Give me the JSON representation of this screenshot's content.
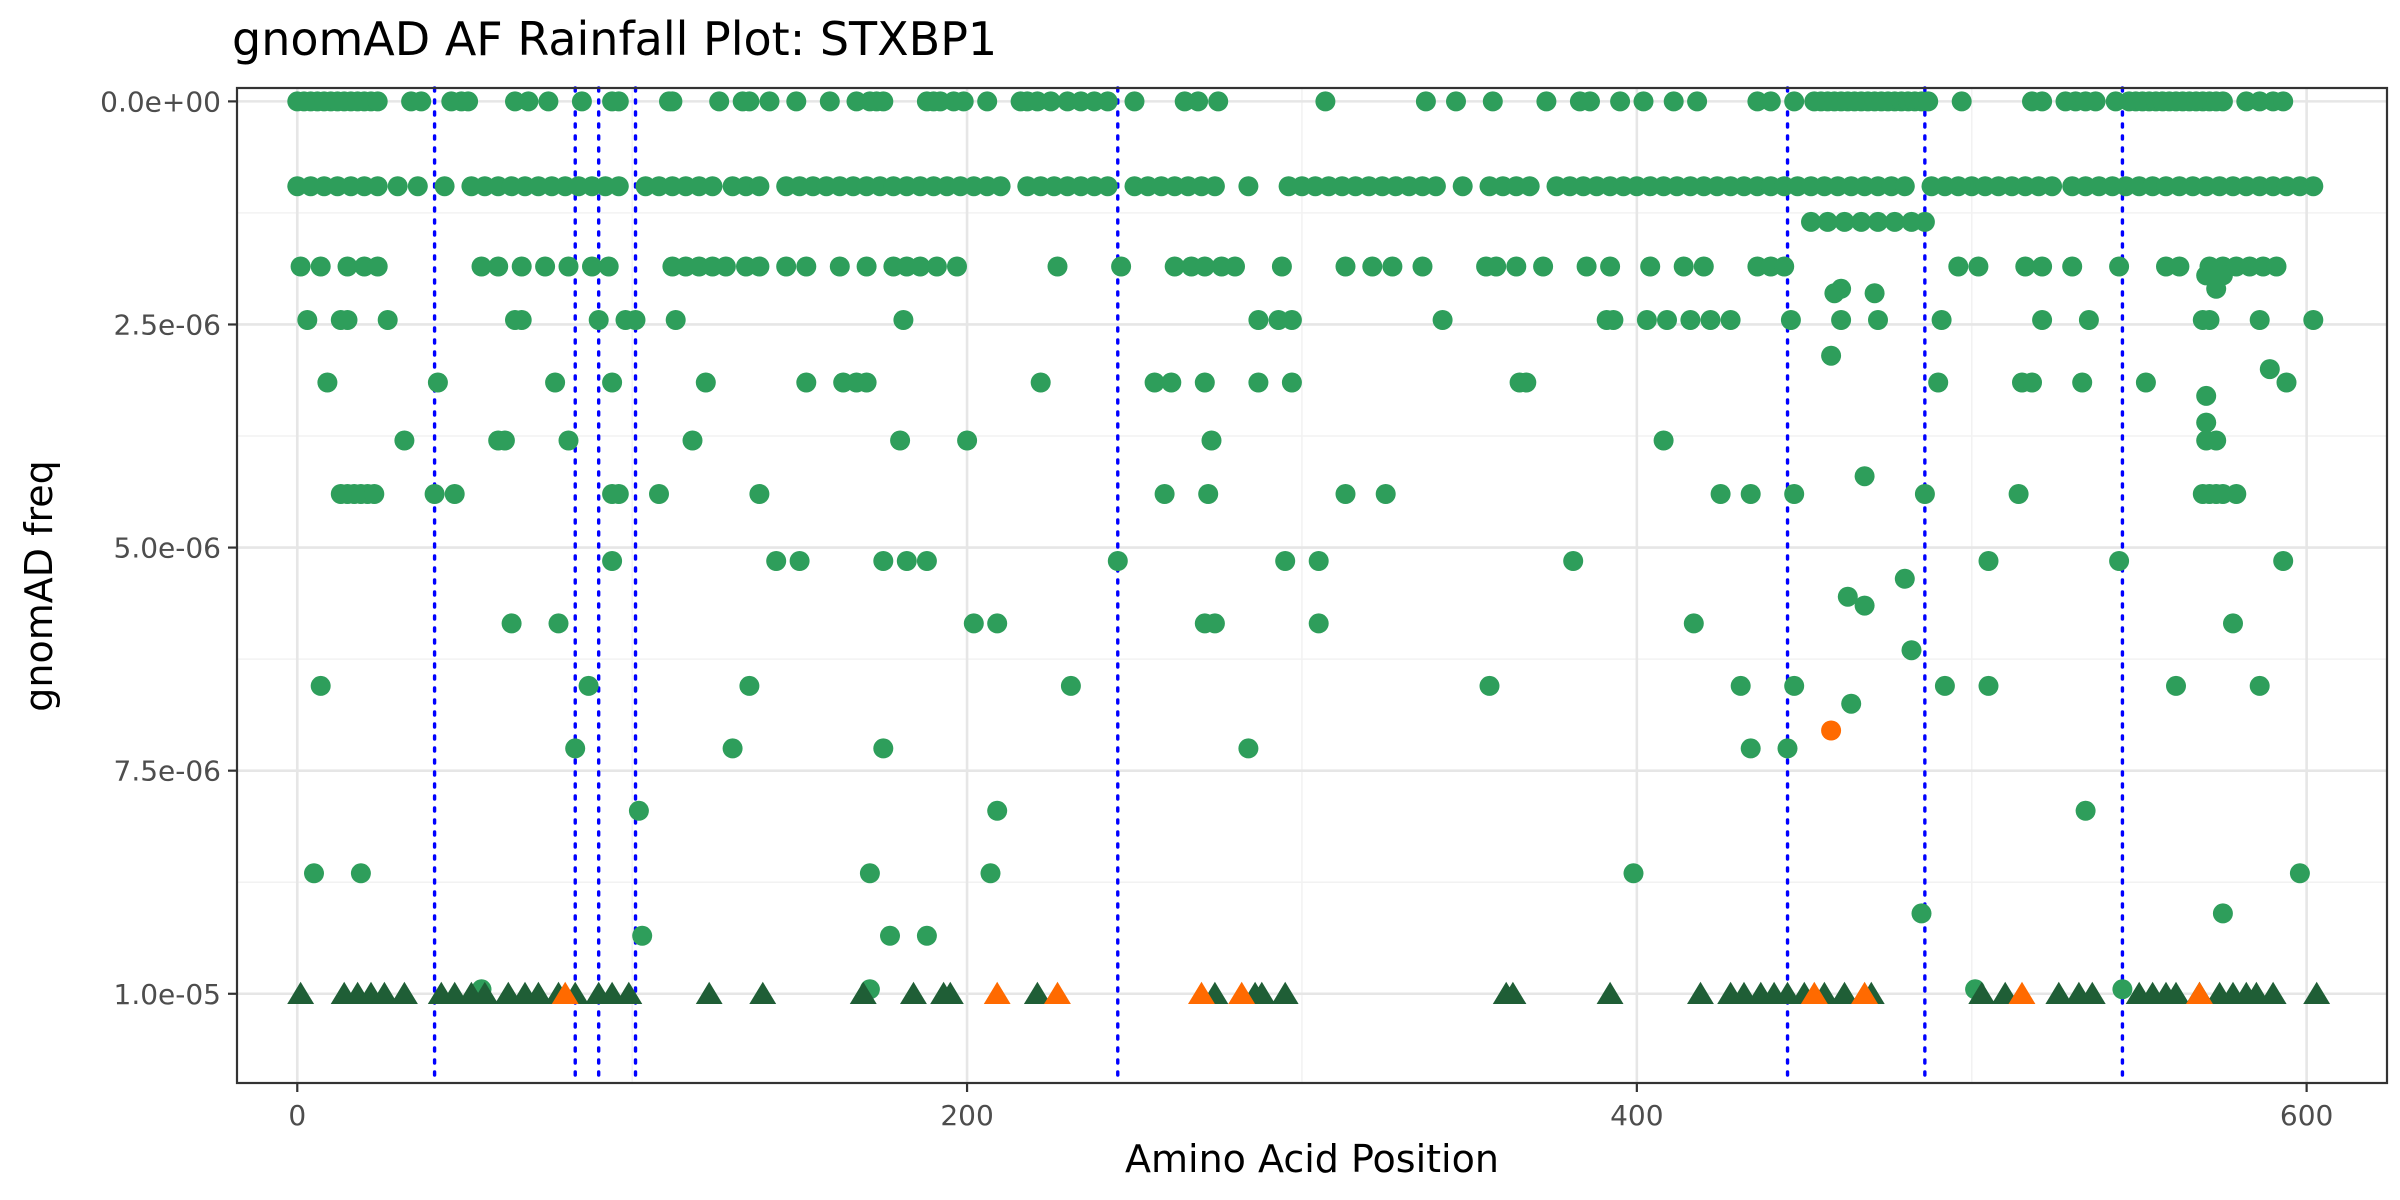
{
  "chart_data": {
    "type": "scatter",
    "title": "gnomAD AF Rainfall Plot: STXBP1",
    "xlabel": "Amino Acid Position",
    "ylabel": "gnomAD freq",
    "xlim": [
      -18,
      624
    ],
    "ylim": [
      1.1e-05,
      -1.5e-07
    ],
    "y_reversed": true,
    "x_ticks": [
      0,
      200,
      400,
      600
    ],
    "x_tick_labels": [
      "0",
      "200",
      "400",
      "600"
    ],
    "y_ticks": [
      0,
      2.5e-06,
      5e-06,
      7.5e-06,
      1e-05
    ],
    "y_tick_labels": [
      "0.0e+00",
      "2.5e-06",
      "5.0e-06",
      "7.5e-06",
      "1.0e-05"
    ],
    "grid": true,
    "legend": "none",
    "colors": {
      "green": "#2e9e5b",
      "dark_green": "#1f5e36",
      "orange": "#ff6a00",
      "vline": "#0000ff"
    },
    "vlines": [
      41,
      83,
      90,
      101,
      245,
      445,
      486,
      545
    ],
    "green_rows": [
      {
        "y": 0,
        "x": [
          0,
          2,
          4,
          6,
          8,
          10,
          12,
          14,
          16,
          18,
          20,
          22,
          24,
          34,
          37,
          46,
          49,
          51,
          65,
          69,
          75,
          85,
          94,
          96,
          111,
          112,
          126,
          133,
          135,
          141,
          149,
          159,
          167,
          171,
          173,
          175,
          188,
          190,
          192,
          196,
          199,
          206,
          216,
          218,
          221,
          225,
          230,
          234,
          238,
          242,
          250,
          265,
          269,
          275,
          307,
          337,
          346,
          357,
          373,
          383,
          386,
          395,
          402,
          411,
          418,
          436,
          440,
          447,
          453,
          455,
          457,
          459,
          461,
          463,
          465,
          467,
          469,
          471,
          473,
          475,
          477,
          479,
          481,
          483,
          485,
          487,
          497,
          518,
          521,
          528,
          531,
          534,
          537,
          543,
          547,
          549,
          551,
          553,
          555,
          557,
          559,
          561,
          563,
          565,
          567,
          569,
          571,
          573,
          575,
          582,
          586,
          590,
          593
        ]
      },
      {
        "y": 9.5e-07,
        "x": [
          0,
          4,
          8,
          12,
          16,
          20,
          24,
          30,
          36,
          44,
          52,
          56,
          60,
          64,
          68,
          72,
          76,
          80,
          84,
          88,
          92,
          96,
          104,
          108,
          112,
          116,
          120,
          124,
          130,
          134,
          138,
          146,
          150,
          154,
          158,
          162,
          166,
          170,
          174,
          178,
          182,
          186,
          190,
          194,
          198,
          202,
          206,
          210,
          218,
          222,
          226,
          230,
          234,
          238,
          242,
          250,
          254,
          258,
          262,
          266,
          270,
          274,
          284,
          296,
          300,
          304,
          308,
          312,
          316,
          320,
          324,
          328,
          332,
          336,
          340,
          348,
          356,
          360,
          364,
          368,
          376,
          380,
          384,
          388,
          392,
          396,
          400,
          404,
          408,
          412,
          416,
          420,
          424,
          428,
          432,
          436,
          440,
          444,
          448,
          452,
          456,
          460,
          464,
          468,
          472,
          476,
          480,
          488,
          492,
          496,
          500,
          504,
          508,
          512,
          516,
          520,
          524,
          530,
          534,
          538,
          542,
          546,
          550,
          554,
          558,
          562,
          566,
          570,
          574,
          578,
          582,
          586,
          590,
          594,
          598,
          602
        ]
      },
      {
        "y": 1.35e-06,
        "x": [
          452,
          457,
          462,
          467,
          472,
          477,
          482,
          486
        ]
      },
      {
        "y": 1.85e-06,
        "x": [
          1,
          7,
          15,
          20,
          24,
          55,
          60,
          67,
          74,
          81,
          88,
          93,
          112,
          116,
          120,
          124,
          128,
          134,
          138,
          146,
          152,
          162,
          170,
          178,
          182,
          186,
          191,
          197,
          227,
          246,
          262,
          267,
          271,
          276,
          280,
          294,
          313,
          321,
          327,
          336,
          355,
          358,
          364,
          372,
          385,
          392,
          404,
          414,
          420,
          436,
          440,
          444,
          496,
          502,
          516,
          521,
          530,
          544,
          558,
          562,
          571,
          575,
          579,
          583,
          587,
          591
        ]
      },
      {
        "y": 2.45e-06,
        "x": [
          3,
          13,
          15,
          27,
          65,
          67,
          90,
          98,
          101,
          113,
          181,
          287,
          293,
          297,
          342,
          391,
          393,
          403,
          409,
          416,
          422,
          428,
          446,
          461,
          472,
          491,
          521,
          535,
          571,
          586,
          602
        ]
      },
      {
        "y": 3.15e-06,
        "x": [
          9,
          42,
          77,
          94,
          122,
          152,
          163,
          167,
          170,
          222,
          256,
          261,
          271,
          287,
          297,
          365,
          367,
          490,
          515,
          518,
          533,
          552,
          594
        ]
      },
      {
        "y": 3.8e-06,
        "x": [
          32,
          60,
          62,
          81,
          118,
          180,
          200,
          273,
          408
        ]
      },
      {
        "y": 4.4e-06,
        "x": [
          13,
          15,
          17,
          19,
          21,
          23,
          41,
          47,
          94,
          96,
          108,
          138,
          259,
          272,
          313,
          325,
          425,
          434,
          447,
          486,
          514,
          569,
          571,
          573,
          575
        ]
      },
      {
        "y": 5.15e-06,
        "x": [
          94,
          143,
          150,
          175,
          182,
          188,
          245,
          295,
          305,
          381,
          505,
          544,
          593
        ]
      },
      {
        "y": 5.85e-06,
        "x": [
          64,
          78,
          202,
          209,
          271,
          274,
          305,
          417
        ]
      },
      {
        "y": 6.55e-06,
        "x": [
          7,
          87,
          135,
          231,
          356,
          431,
          447,
          492,
          505,
          561,
          586
        ]
      },
      {
        "y": 7.25e-06,
        "x": [
          83,
          130,
          175,
          284,
          434,
          445
        ]
      },
      {
        "y": 7.95e-06,
        "x": [
          102,
          209,
          534
        ]
      },
      {
        "y": 8.65e-06,
        "x": [
          5,
          19,
          171,
          207,
          399,
          598
        ]
      },
      {
        "y": 9.35e-06,
        "x": [
          103,
          177,
          188
        ]
      },
      {
        "y": 9.95e-06,
        "x": [
          55,
          171,
          501,
          545
        ]
      }
    ],
    "green_extra": [
      {
        "x": 589,
        "y": 3e-06
      },
      {
        "x": 458,
        "y": 2.85e-06
      },
      {
        "x": 459,
        "y": 2.15e-06
      },
      {
        "x": 461,
        "y": 2.1e-06
      },
      {
        "x": 471,
        "y": 2.15e-06
      },
      {
        "x": 468,
        "y": 4.2e-06
      },
      {
        "x": 468,
        "y": 5.65e-06
      },
      {
        "x": 464,
        "y": 6.75e-06
      },
      {
        "x": 463,
        "y": 5.55e-06
      },
      {
        "x": 480,
        "y": 5.35e-06
      },
      {
        "x": 482,
        "y": 6.15e-06
      },
      {
        "x": 579,
        "y": 4.4e-06
      },
      {
        "x": 570,
        "y": 3.3e-06
      },
      {
        "x": 570,
        "y": 3.6e-06
      },
      {
        "x": 570,
        "y": 3.8e-06
      },
      {
        "x": 573,
        "y": 3.8e-06
      },
      {
        "x": 573,
        "y": 2.1e-06
      },
      {
        "x": 575,
        "y": 1.95e-06
      },
      {
        "x": 570,
        "y": 1.95e-06
      },
      {
        "x": 569,
        "y": 2.45e-06
      },
      {
        "x": 578,
        "y": 5.85e-06
      },
      {
        "x": 575,
        "y": 9.1e-06
      },
      {
        "x": 485,
        "y": 9.1e-06
      }
    ],
    "orange_points": [
      {
        "x": 458,
        "y": 7.05e-06
      }
    ],
    "triangles_dark": [
      1,
      14,
      18,
      22,
      26,
      32,
      43,
      47,
      52,
      56,
      63,
      68,
      72,
      78,
      83,
      90,
      94,
      99,
      123,
      139,
      169,
      184,
      193,
      195,
      221,
      274,
      286,
      288,
      295,
      361,
      363,
      392,
      419,
      428,
      432,
      437,
      441,
      445,
      450,
      456,
      462,
      470,
      503,
      510,
      526,
      532,
      536,
      550,
      554,
      558,
      561,
      568,
      574,
      578,
      582,
      585,
      590,
      603
    ],
    "triangles_orange": [
      80,
      209,
      227,
      270,
      282,
      453,
      468,
      515,
      568
    ]
  }
}
